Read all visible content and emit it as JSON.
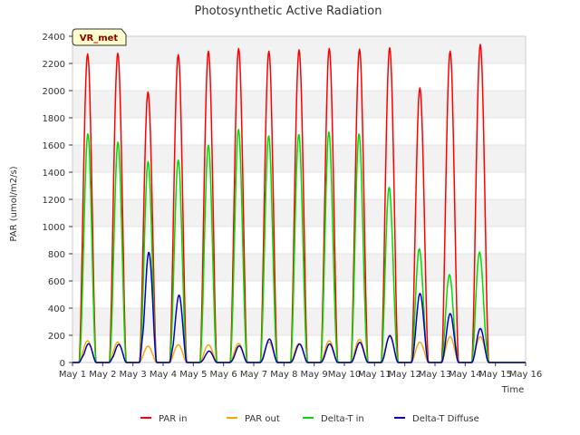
{
  "chart_data": {
    "type": "line",
    "title": "Photosynthetic Active Radiation",
    "xlabel": "Time",
    "ylabel": "PAR (umol/m2/s)",
    "ylim": [
      0,
      2400
    ],
    "yticks": [
      0,
      200,
      400,
      600,
      800,
      1000,
      1200,
      1400,
      1600,
      1800,
      2000,
      2200,
      2400
    ],
    "xlim": [
      1,
      16
    ],
    "xticks": [
      {
        "value": 1,
        "label": "May 1"
      },
      {
        "value": 2,
        "label": "May 2"
      },
      {
        "value": 3,
        "label": "May 3"
      },
      {
        "value": 4,
        "label": "May 4"
      },
      {
        "value": 5,
        "label": "May 5"
      },
      {
        "value": 6,
        "label": "May 6"
      },
      {
        "value": 7,
        "label": "May 7"
      },
      {
        "value": 8,
        "label": "May 8"
      },
      {
        "value": 9,
        "label": "May 9"
      },
      {
        "value": 10,
        "label": "May 10"
      },
      {
        "value": 11,
        "label": "May 11"
      },
      {
        "value": 12,
        "label": "May 12"
      },
      {
        "value": 13,
        "label": "May 13"
      },
      {
        "value": 14,
        "label": "May 14"
      },
      {
        "value": 15,
        "label": "May 15"
      },
      {
        "value": 16,
        "label": "May 16"
      }
    ],
    "grid": "horizontal bands",
    "annotation": "VR_met",
    "legend_position": "bottom",
    "daily_peaks": {
      "days": [
        1,
        2,
        3,
        4,
        5,
        6,
        7,
        8,
        9,
        10,
        11,
        12,
        13,
        14,
        15
      ],
      "series": [
        {
          "name": "PAR in",
          "color": "#ff0000",
          "values": [
            2270,
            2275,
            1990,
            2265,
            2290,
            2310,
            2290,
            2300,
            2310,
            2305,
            2315,
            2020,
            2290,
            2340,
            0
          ]
        },
        {
          "name": "PAR out",
          "color": "#ffa500",
          "values": [
            160,
            150,
            120,
            130,
            130,
            140,
            150,
            140,
            160,
            170,
            190,
            150,
            190,
            190,
            0
          ]
        },
        {
          "name": "Delta-T in",
          "color": "#00dd00",
          "values": [
            1700,
            1630,
            1480,
            1490,
            1600,
            1720,
            1680,
            1700,
            1730,
            1730,
            1340,
            880,
            690,
            880,
            0
          ]
        },
        {
          "name": "Delta-T Diffuse",
          "color": "#0000cc",
          "values": [
            160,
            150,
            900,
            540,
            90,
            130,
            180,
            140,
            140,
            150,
            200,
            510,
            360,
            250,
            0
          ]
        }
      ]
    }
  }
}
